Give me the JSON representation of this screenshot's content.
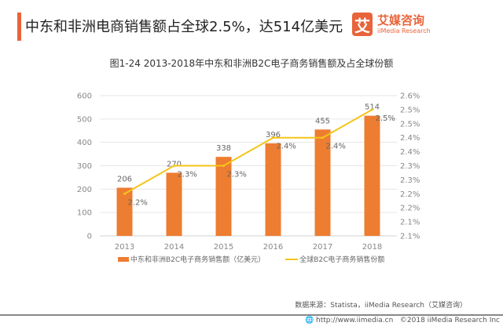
{
  "header": {
    "title": "中东和非洲电商销售额占全球2.5%，达514亿美元",
    "logo_mark": "艾",
    "logo_cn": "艾媒咨询",
    "logo_en": "iiMedia Research"
  },
  "chart_data": {
    "type": "bar+line",
    "title": "图1-24  2013-2018年中东和非洲B2C电子商务销售额及占全球份额",
    "categories": [
      "2013",
      "2014",
      "2015",
      "2016",
      "2017",
      "2018"
    ],
    "series": [
      {
        "name": "中东和非洲B2C电子商务销售额（亿美元）",
        "type": "bar",
        "axis": "left",
        "values": [
          206,
          270,
          338,
          396,
          455,
          514
        ],
        "labels": [
          "206",
          "270",
          "338",
          "396",
          "455",
          "514"
        ],
        "color": "#ed7d31"
      },
      {
        "name": "全球B2C电子商务销售份额",
        "type": "line",
        "axis": "right",
        "values": [
          2.25,
          2.35,
          2.35,
          2.45,
          2.45,
          2.55
        ],
        "labels": [
          "2.2%",
          "2.3%",
          "2.3%",
          "2.4%",
          "2.4%",
          "2.5%"
        ],
        "color": "#f5c518"
      }
    ],
    "left_axis": {
      "ylim": [
        0,
        600
      ],
      "ticks": [
        "0",
        "100",
        "200",
        "300",
        "400",
        "500",
        "600"
      ]
    },
    "right_axis": {
      "ylim": [
        2.1,
        2.6
      ],
      "ticks": [
        "2.1%",
        "2.1%",
        "2.2%",
        "2.2%",
        "2.3%",
        "2.3%",
        "2.4%",
        "2.4%",
        "2.5%",
        "2.5%",
        "2.6%"
      ]
    },
    "grid": true,
    "legend": "bottom"
  },
  "footer": {
    "source": "数据来源：Statista，iiMedia Research（艾媒咨询）",
    "url": "http://www.iimedia.cn",
    "copyright": "©2018  iiMedia Research  Inc"
  }
}
